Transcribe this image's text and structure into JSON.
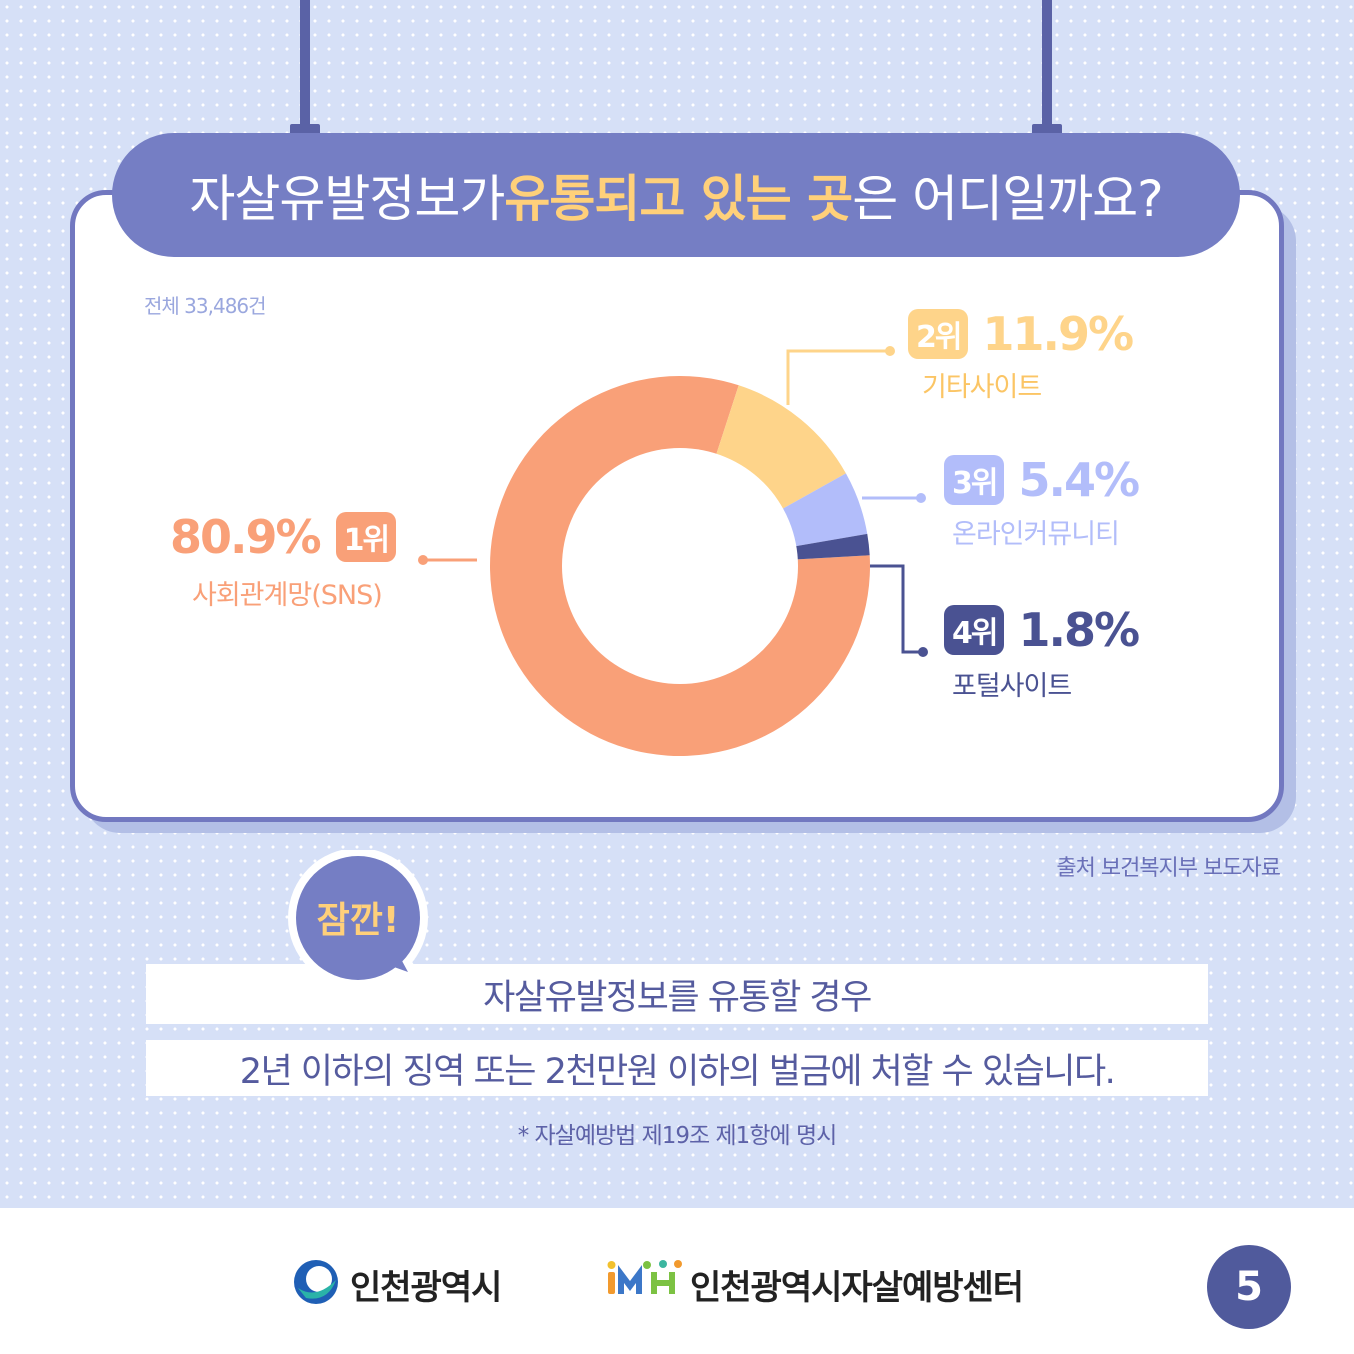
{
  "title": {
    "part1": "자살유발정보가 ",
    "highlight": "유통되고 있는 곳",
    "part2": "은 어디일까요?"
  },
  "total": "전체 33,486건",
  "chart_data": {
    "type": "pie",
    "title": "",
    "total_label": "전체 33,486건",
    "slices": [
      {
        "rank": "1위",
        "label": "사회관계망(SNS)",
        "value": 80.9,
        "pct_text": "80.9%",
        "color": "#f9a078"
      },
      {
        "rank": "2위",
        "label": "기타사이트",
        "value": 11.9,
        "pct_text": "11.9%",
        "color": "#fed48a"
      },
      {
        "rank": "3위",
        "label": "온라인커뮤니티",
        "value": 5.4,
        "pct_text": "5.4%",
        "color": "#b2bdfa"
      },
      {
        "rank": "4위",
        "label": "포털사이트",
        "value": 1.8,
        "pct_text": "1.8%",
        "color": "#4a5292"
      }
    ]
  },
  "source": "출처  보건복지부 보도자료",
  "note": {
    "bubble": "잠깐!",
    "line1": "자살유발정보를 유통할 경우",
    "line2": "2년 이하의 징역 또는 2천만원 이하의 벌금에 처할 수 있습니다.",
    "law": "* 자살예방법 제19조 제1항에 명시"
  },
  "footer": {
    "org1": "인천광역시",
    "org2": "인천광역시자살예방센터",
    "page": "5"
  },
  "colors": {
    "background": "#d6e0f7",
    "title_bar": "#757ec4",
    "highlight": "#ffd07a",
    "navy": "#505a9c"
  }
}
